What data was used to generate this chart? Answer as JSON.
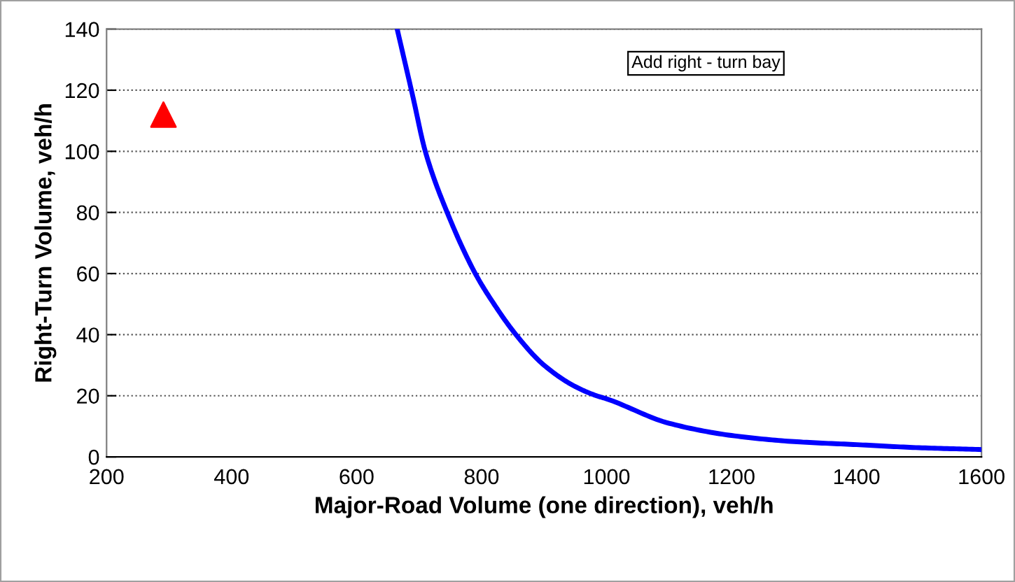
{
  "chart_data": {
    "type": "line",
    "xlabel": "Major-Road Volume (one direction), veh/h",
    "ylabel": "Right-Turn Volume, veh/h",
    "xlim": [
      200,
      1600
    ],
    "xticks": [
      200,
      400,
      600,
      800,
      1000,
      1200,
      1400,
      1600
    ],
    "ylim": [
      0,
      140
    ],
    "yticks": [
      0,
      20,
      40,
      60,
      80,
      100,
      120,
      140
    ],
    "grid": "y",
    "legend": false,
    "annotations": [
      "Add right - turn bay"
    ],
    "series": [
      {
        "color": "#0000ff",
        "marker": "none",
        "line_style": "solid",
        "x": [
          665,
          690,
          710,
          745,
          790,
          820,
          855,
          900,
          950,
          984,
          1000,
          1100,
          1200,
          1300,
          1400,
          1500,
          1600
        ],
        "values": [
          140,
          118,
          100,
          80,
          60,
          50,
          40,
          30,
          23,
          20,
          19,
          11,
          7,
          5,
          4,
          3,
          2.4
        ]
      },
      {
        "type": "scatter",
        "color": "#ff0000",
        "marker": "triangle",
        "x": [
          291
        ],
        "values": [
          112
        ]
      }
    ]
  }
}
